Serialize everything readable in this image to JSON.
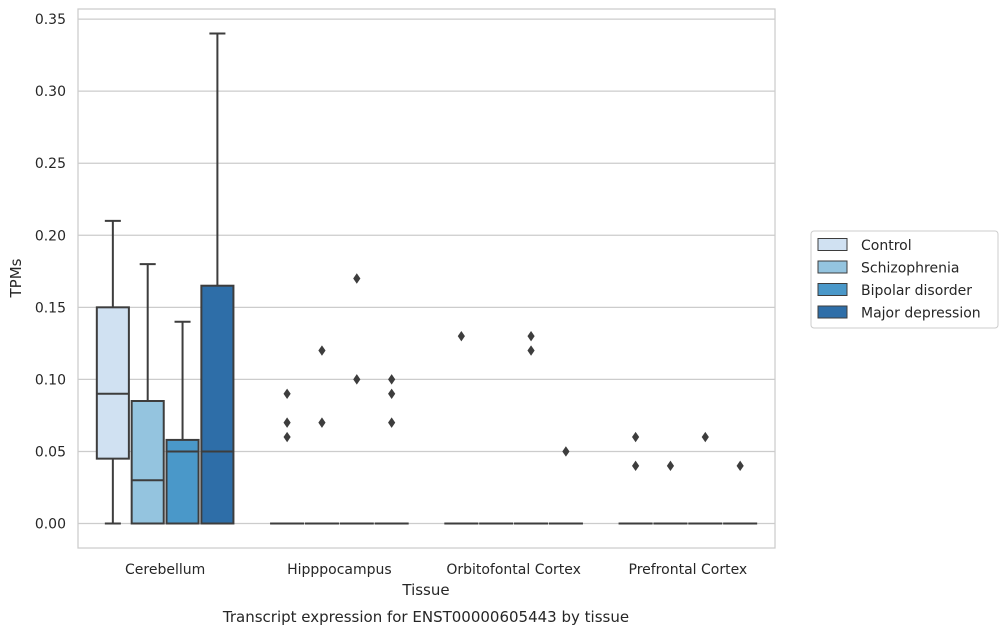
{
  "chart_data": {
    "type": "box",
    "title": "Transcript expression for ENST00000605443 by tissue",
    "xlabel": "Tissue",
    "ylabel": "TPMs",
    "ylim": [
      -0.017,
      0.357
    ],
    "yticks": [
      0.0,
      0.05,
      0.1,
      0.15,
      0.2,
      0.25,
      0.3,
      0.35
    ],
    "ytick_labels": [
      "0.00",
      "0.05",
      "0.10",
      "0.15",
      "0.20",
      "0.25",
      "0.30",
      "0.35"
    ],
    "grid": "horizontal",
    "legend_position": "right",
    "categories": [
      "Cerebellum",
      "Hipppocampus",
      "Orbitofontal Cortex",
      "Prefrontal Cortex"
    ],
    "series": [
      {
        "name": "Control",
        "color": "#d0e1f2",
        "boxes": [
          {
            "whisker_low": 0.0,
            "q1": 0.045,
            "median": 0.09,
            "q3": 0.15,
            "whisker_high": 0.21,
            "outliers": []
          },
          {
            "whisker_low": 0.0,
            "q1": 0.0,
            "median": 0.0,
            "q3": 0.0,
            "whisker_high": 0.0,
            "outliers": [
              0.06,
              0.07,
              0.09
            ]
          },
          {
            "whisker_low": 0.0,
            "q1": 0.0,
            "median": 0.0,
            "q3": 0.0,
            "whisker_high": 0.0,
            "outliers": [
              0.13
            ]
          },
          {
            "whisker_low": 0.0,
            "q1": 0.0,
            "median": 0.0,
            "q3": 0.0,
            "whisker_high": 0.0,
            "outliers": [
              0.04,
              0.06
            ]
          }
        ]
      },
      {
        "name": "Schizophrenia",
        "color": "#94c4df",
        "boxes": [
          {
            "whisker_low": 0.0,
            "q1": 0.0,
            "median": 0.03,
            "q3": 0.085,
            "whisker_high": 0.18,
            "outliers": []
          },
          {
            "whisker_low": 0.0,
            "q1": 0.0,
            "median": 0.0,
            "q3": 0.0,
            "whisker_high": 0.0,
            "outliers": [
              0.07,
              0.12
            ]
          },
          {
            "whisker_low": 0.0,
            "q1": 0.0,
            "median": 0.0,
            "q3": 0.0,
            "whisker_high": 0.0,
            "outliers": []
          },
          {
            "whisker_low": 0.0,
            "q1": 0.0,
            "median": 0.0,
            "q3": 0.0,
            "whisker_high": 0.0,
            "outliers": [
              0.04
            ]
          }
        ]
      },
      {
        "name": "Bipolar disorder",
        "color": "#4a98c9",
        "boxes": [
          {
            "whisker_low": 0.0,
            "q1": 0.0,
            "median": 0.05,
            "q3": 0.058,
            "whisker_high": 0.14,
            "outliers": []
          },
          {
            "whisker_low": 0.0,
            "q1": 0.0,
            "median": 0.0,
            "q3": 0.0,
            "whisker_high": 0.0,
            "outliers": [
              0.1,
              0.17
            ]
          },
          {
            "whisker_low": 0.0,
            "q1": 0.0,
            "median": 0.0,
            "q3": 0.0,
            "whisker_high": 0.0,
            "outliers": [
              0.12,
              0.13
            ]
          },
          {
            "whisker_low": 0.0,
            "q1": 0.0,
            "median": 0.0,
            "q3": 0.0,
            "whisker_high": 0.0,
            "outliers": [
              0.06
            ]
          }
        ]
      },
      {
        "name": "Major depression",
        "color": "#2e6ea8",
        "boxes": [
          {
            "whisker_low": 0.0,
            "q1": 0.0,
            "median": 0.05,
            "q3": 0.165,
            "whisker_high": 0.34,
            "outliers": []
          },
          {
            "whisker_low": 0.0,
            "q1": 0.0,
            "median": 0.0,
            "q3": 0.0,
            "whisker_high": 0.0,
            "outliers": [
              0.07,
              0.09,
              0.1
            ]
          },
          {
            "whisker_low": 0.0,
            "q1": 0.0,
            "median": 0.0,
            "q3": 0.0,
            "whisker_high": 0.0,
            "outliers": [
              0.05
            ]
          },
          {
            "whisker_low": 0.0,
            "q1": 0.0,
            "median": 0.0,
            "q3": 0.0,
            "whisker_high": 0.0,
            "outliers": [
              0.04
            ]
          }
        ]
      }
    ]
  }
}
